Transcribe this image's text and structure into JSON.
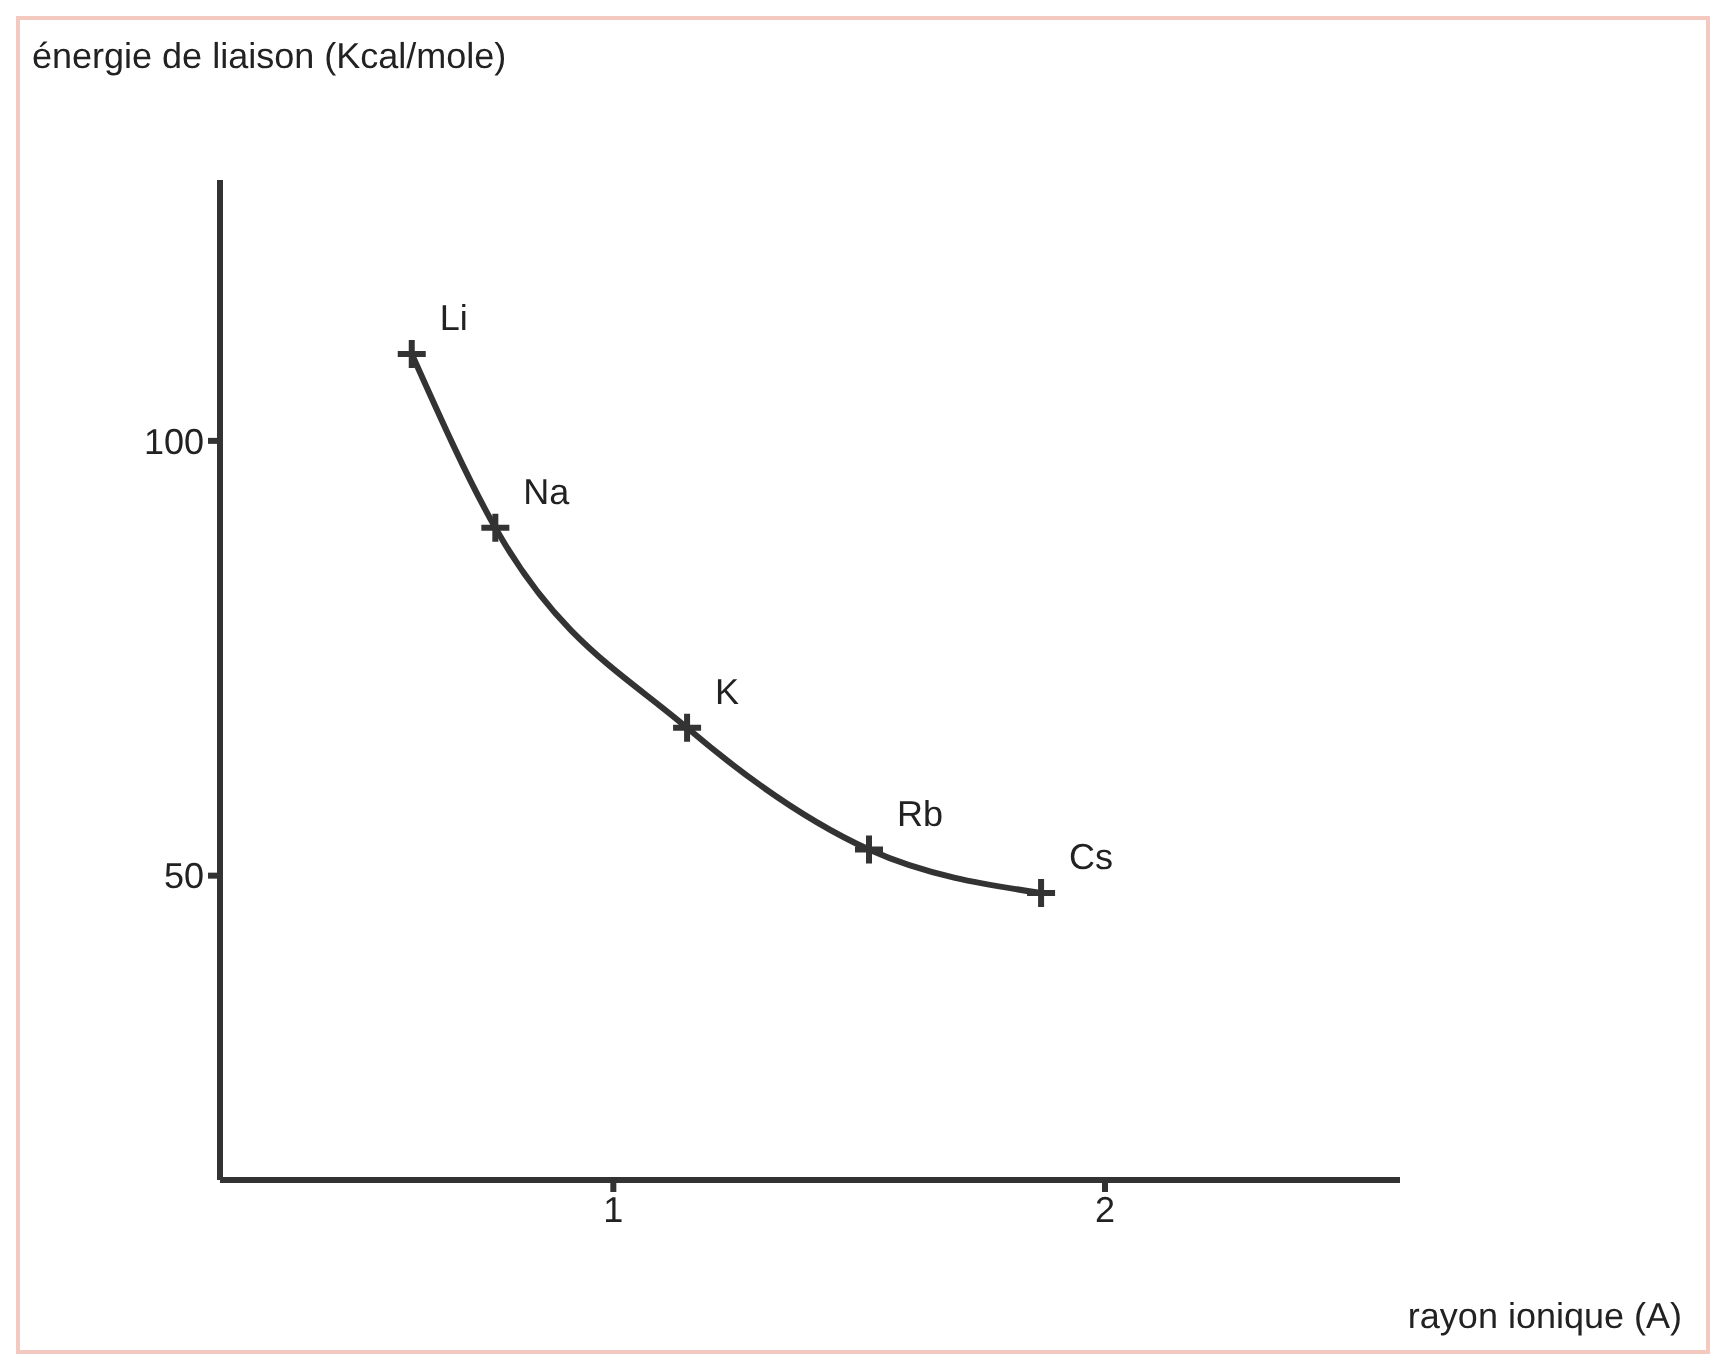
{
  "chart_data": {
    "type": "line",
    "ylabel": "énergie de liaison (Kcal/mole)",
    "xlabel": "rayon ionique (A)",
    "x": [
      0.59,
      0.76,
      1.15,
      1.52,
      1.87
    ],
    "series": [
      {
        "color": "#333333",
        "values": [
          110,
          90,
          67,
          53,
          48
        ]
      }
    ],
    "xlim": [
      0.2,
      2.6
    ],
    "xticks": [
      1,
      2
    ],
    "ylim": [
      15,
      130
    ],
    "yticks": [
      50,
      100
    ],
    "grid": false,
    "legend": false,
    "marker": "cross",
    "line_style": "solid",
    "annotations": [
      {
        "text": "Li",
        "x": 0.59,
        "y": 110
      },
      {
        "text": "Na",
        "x": 0.76,
        "y": 90
      },
      {
        "text": "K",
        "x": 1.15,
        "y": 67
      },
      {
        "text": "Rb",
        "x": 1.52,
        "y": 53
      },
      {
        "text": "Cs",
        "x": 1.87,
        "y": 48
      }
    ]
  }
}
